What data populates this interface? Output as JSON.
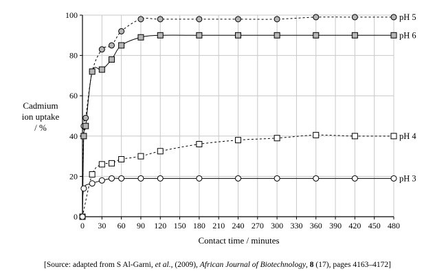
{
  "chart_data": {
    "type": "line",
    "xlabel": "Contact time / minutes",
    "ylabel_lines": [
      "Cadmium",
      "ion uptake",
      "/ %"
    ],
    "xlim": [
      0,
      480
    ],
    "ylim": [
      0,
      100
    ],
    "x_ticks": [
      0,
      30,
      60,
      90,
      120,
      150,
      180,
      210,
      240,
      270,
      300,
      330,
      360,
      390,
      420,
      450,
      480
    ],
    "y_ticks": [
      0,
      20,
      40,
      60,
      80,
      100
    ],
    "grid": true,
    "series": [
      {
        "name": "pH 5",
        "marker": "circle",
        "fill": "#b5b5b5",
        "dash": true,
        "points": [
          [
            0,
            0
          ],
          [
            2,
            45
          ],
          [
            5,
            49
          ],
          [
            15,
            72
          ],
          [
            30,
            83
          ],
          [
            45,
            85
          ],
          [
            60,
            92
          ],
          [
            90,
            98
          ],
          [
            120,
            98
          ],
          [
            180,
            98
          ],
          [
            240,
            98
          ],
          [
            300,
            98
          ],
          [
            360,
            99
          ],
          [
            420,
            99
          ],
          [
            480,
            99
          ]
        ]
      },
      {
        "name": "pH 6",
        "marker": "square",
        "fill": "#b5b5b5",
        "dash": false,
        "points": [
          [
            0,
            0
          ],
          [
            2,
            40
          ],
          [
            5,
            45
          ],
          [
            15,
            72
          ],
          [
            30,
            73
          ],
          [
            45,
            78
          ],
          [
            60,
            85
          ],
          [
            90,
            89
          ],
          [
            120,
            90
          ],
          [
            180,
            90
          ],
          [
            240,
            90
          ],
          [
            300,
            90
          ],
          [
            360,
            90
          ],
          [
            420,
            90
          ],
          [
            480,
            90
          ]
        ]
      },
      {
        "name": "pH 4",
        "marker": "square",
        "fill": "#ffffff",
        "dash": true,
        "points": [
          [
            0,
            0
          ],
          [
            15,
            21
          ],
          [
            30,
            26
          ],
          [
            45,
            26.5
          ],
          [
            60,
            28.5
          ],
          [
            90,
            30
          ],
          [
            120,
            32.5
          ],
          [
            180,
            36
          ],
          [
            240,
            38
          ],
          [
            300,
            39
          ],
          [
            360,
            40.5
          ],
          [
            420,
            40
          ],
          [
            480,
            40
          ]
        ]
      },
      {
        "name": "pH 3",
        "marker": "circle",
        "fill": "#ffffff",
        "dash": false,
        "points": [
          [
            0,
            0
          ],
          [
            2,
            14
          ],
          [
            15,
            16.5
          ],
          [
            30,
            18
          ],
          [
            45,
            19
          ],
          [
            60,
            19
          ],
          [
            90,
            19
          ],
          [
            120,
            19
          ],
          [
            180,
            19
          ],
          [
            240,
            19
          ],
          [
            300,
            19
          ],
          [
            360,
            19
          ],
          [
            420,
            19
          ],
          [
            480,
            19
          ]
        ]
      }
    ]
  },
  "source": {
    "prefix": "[Source: adapted from S Al-Garni, ",
    "etal": "et al.",
    "mid": ", (2009), ",
    "journal": "African Journal of Biotechnology",
    "sep": ", ",
    "volume": "8",
    "suffix": " (17), pages 4163–4172]"
  }
}
